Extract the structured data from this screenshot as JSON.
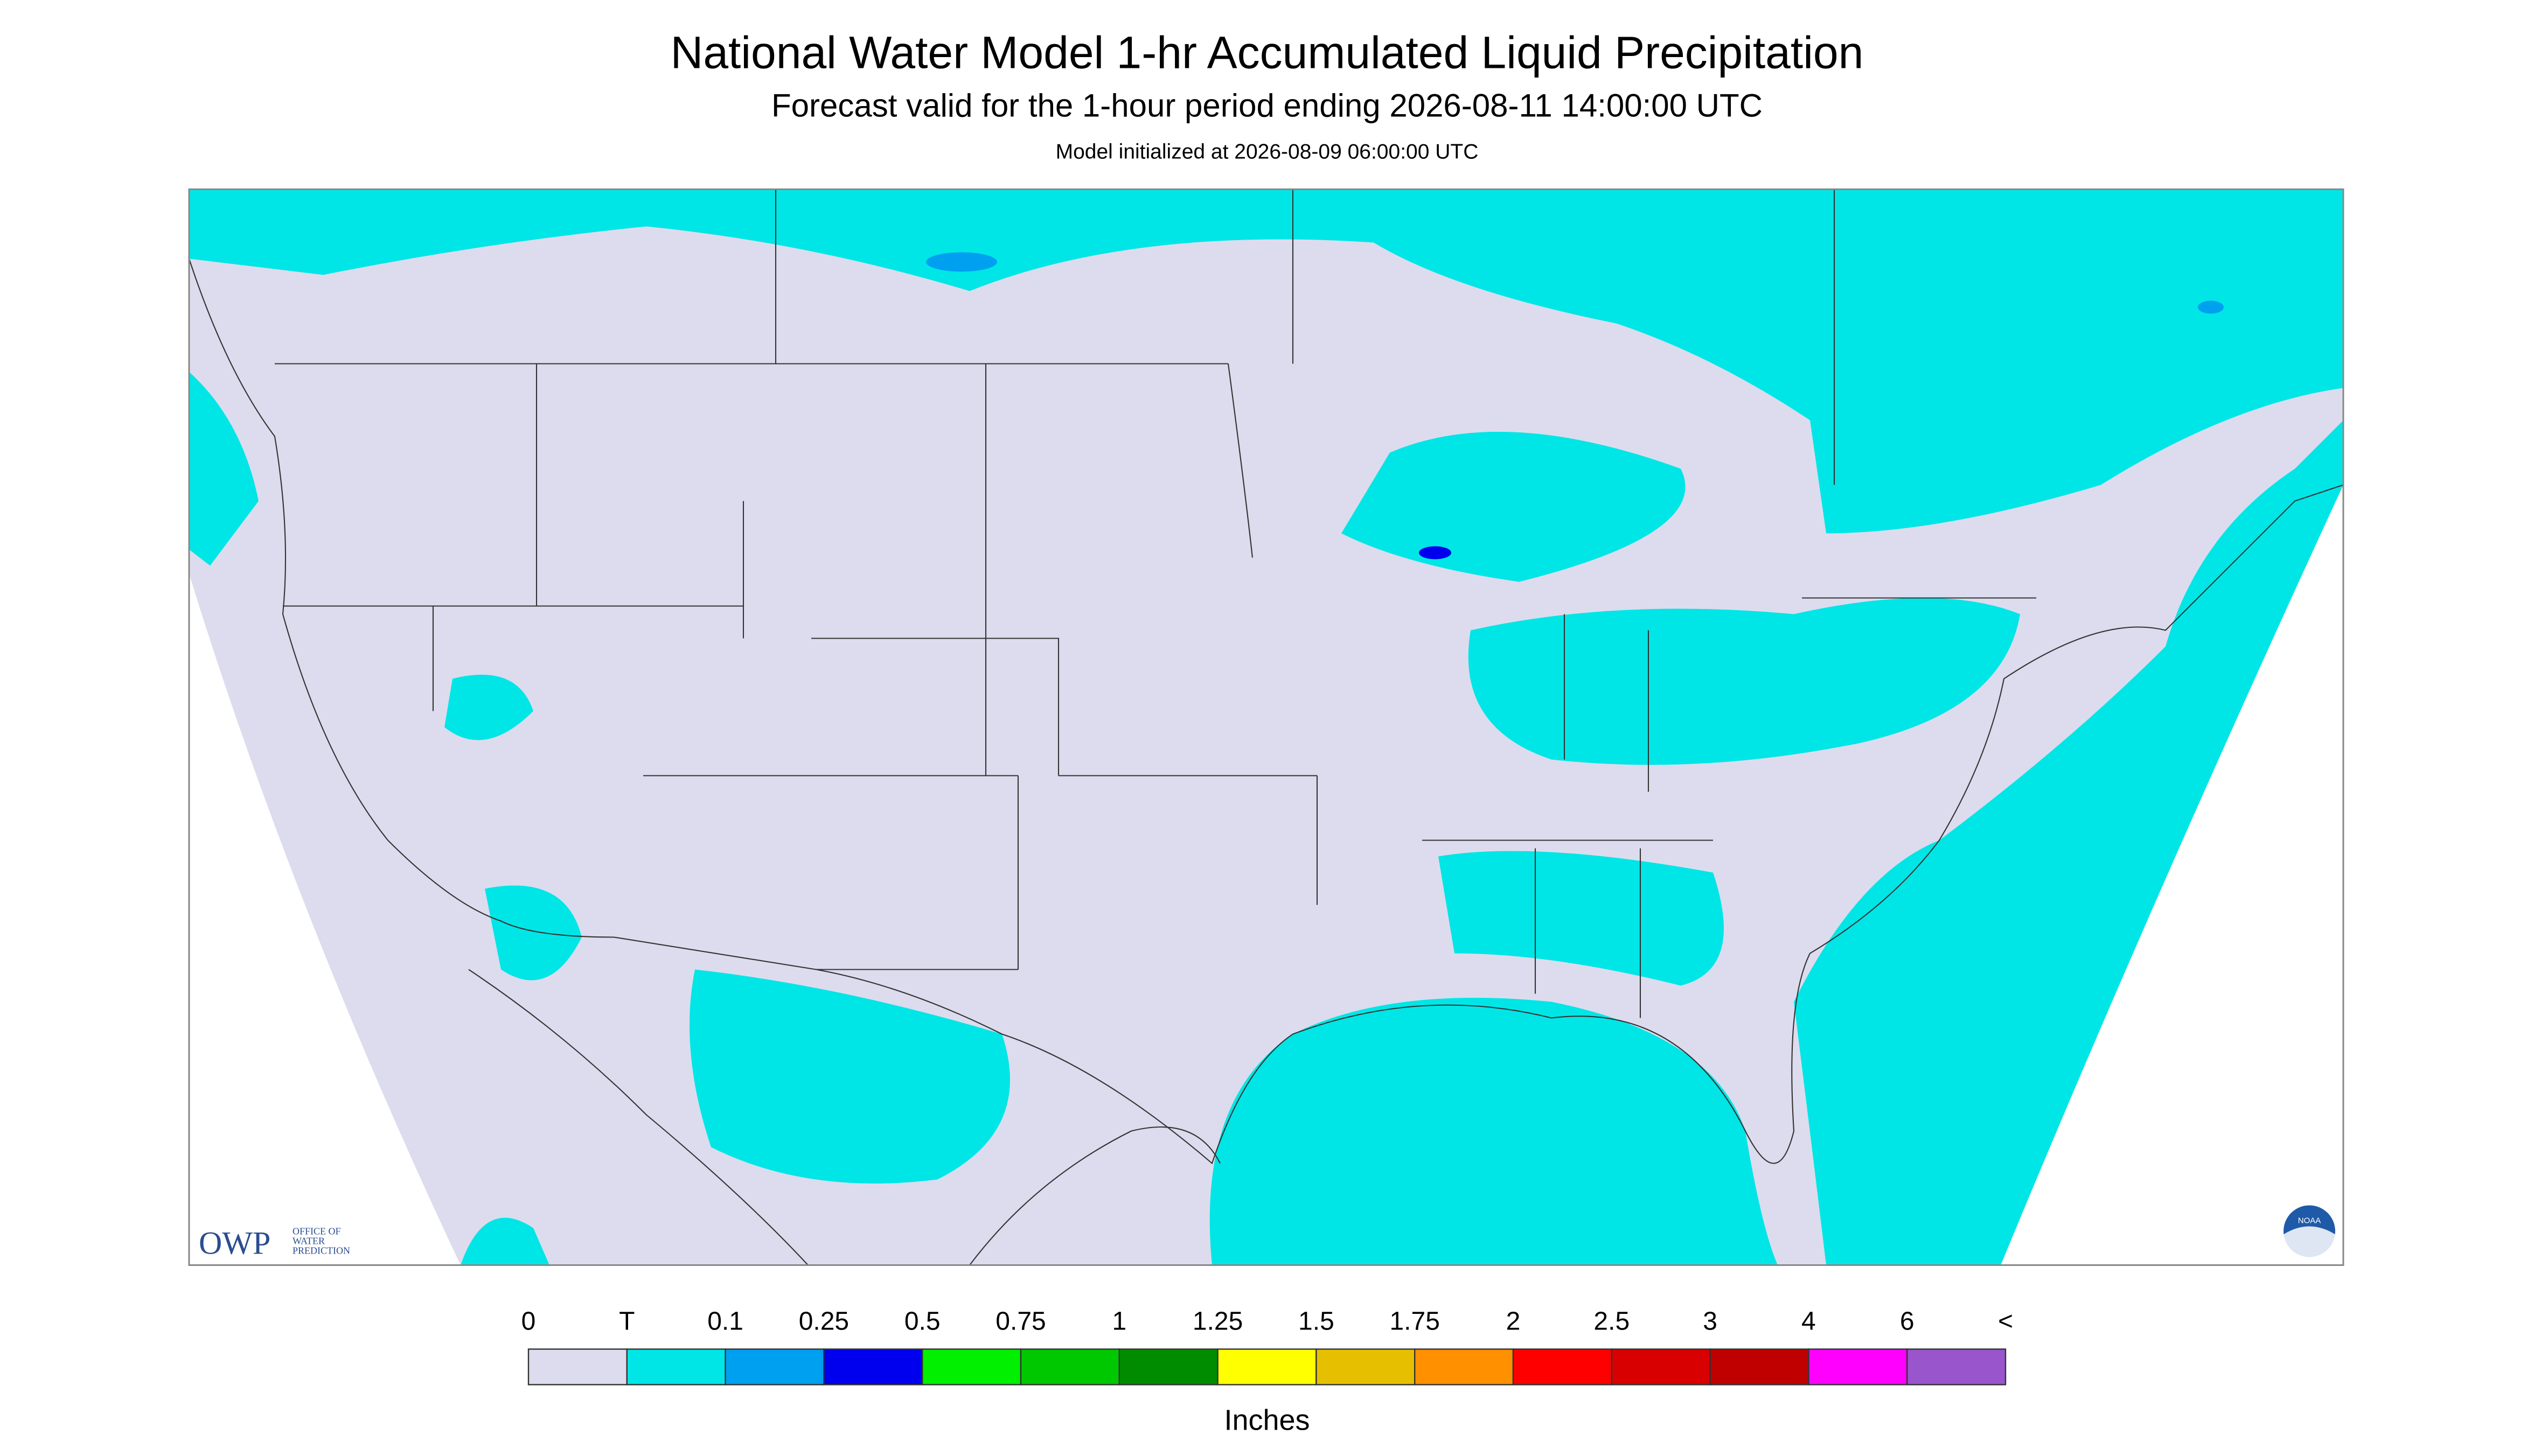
{
  "header": {
    "title": "National Water Model 1-hr Accumulated Liquid Precipitation",
    "subtitle": "Forecast valid for the 1-hour period ending 2026-08-11 14:00:00 UTC",
    "note": "Model initialized at 2026-08-09 06:00:00 UTC"
  },
  "logos": {
    "owp": "OWP",
    "owp_text": [
      "OFFICE OF",
      "WATER",
      "PREDICTION"
    ],
    "noaa": "NOAA"
  },
  "legend": {
    "labels": [
      "0",
      "T",
      "0.1",
      "0.25",
      "0.5",
      "0.75",
      "1",
      "1.25",
      "1.5",
      "1.75",
      "2",
      "2.5",
      "3",
      "4",
      "6",
      "<"
    ],
    "colors": [
      "#dcdcee",
      "#00e6e6",
      "#00a0f0",
      "#0000ee",
      "#00f000",
      "#00c800",
      "#008c00",
      "#ffff00",
      "#e6c000",
      "#ff9000",
      "#ff0000",
      "#d80000",
      "#c00000",
      "#ff00ff",
      "#9955cc"
    ],
    "unit": "Inches"
  }
}
